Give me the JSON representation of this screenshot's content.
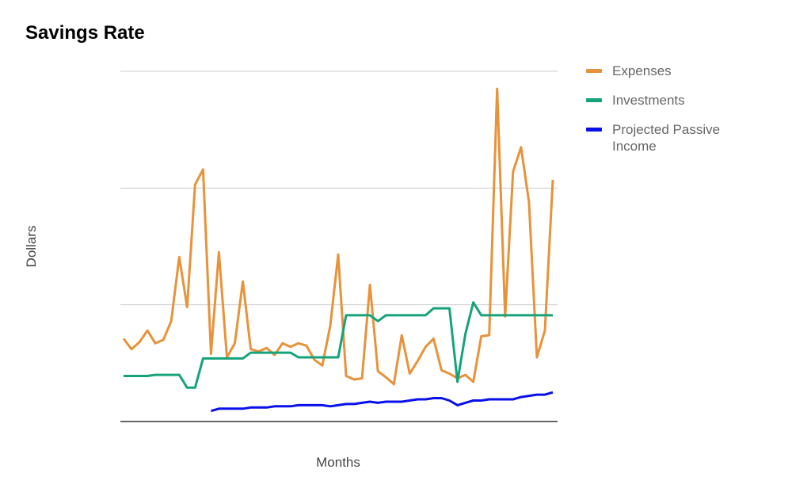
{
  "chart_data": {
    "type": "line",
    "title": "Savings Rate",
    "xlabel": "Months",
    "ylabel": "Dollars",
    "ylim": [
      0,
      3
    ],
    "grid": true,
    "legend_position": "right",
    "series": [
      {
        "name": "Expenses",
        "color": "#e8923a",
        "values": [
          0.71,
          0.62,
          0.68,
          0.78,
          0.67,
          0.7,
          0.86,
          1.41,
          0.98,
          2.03,
          2.16,
          0.58,
          1.45,
          0.55,
          0.67,
          1.2,
          0.62,
          0.6,
          0.63,
          0.57,
          0.67,
          0.64,
          0.67,
          0.65,
          0.53,
          0.48,
          0.82,
          1.43,
          0.39,
          0.36,
          0.37,
          1.17,
          0.43,
          0.38,
          0.32,
          0.74,
          0.41,
          0.52,
          0.64,
          0.71,
          0.44,
          0.41,
          0.37,
          0.4,
          0.34,
          0.73,
          0.74,
          2.85,
          0.9,
          2.14,
          2.35,
          1.88,
          0.55,
          0.78,
          2.07
        ]
      },
      {
        "name": "Investments",
        "color": "#16a27a",
        "values": [
          0.39,
          0.39,
          0.39,
          0.39,
          0.4,
          0.4,
          0.4,
          0.4,
          0.29,
          0.29,
          0.54,
          0.54,
          0.54,
          0.54,
          0.54,
          0.54,
          0.59,
          0.59,
          0.59,
          0.59,
          0.59,
          0.59,
          0.55,
          0.55,
          0.55,
          0.55,
          0.55,
          0.55,
          0.91,
          0.91,
          0.91,
          0.91,
          0.86,
          0.91,
          0.91,
          0.91,
          0.91,
          0.91,
          0.91,
          0.97,
          0.97,
          0.97,
          0.34,
          0.75,
          1.02,
          0.91,
          0.91,
          0.91,
          0.91,
          0.91,
          0.91,
          0.91,
          0.91,
          0.91,
          0.91
        ]
      },
      {
        "name": "Projected Passive Income",
        "color": "#0a10ea",
        "values": [
          null,
          null,
          null,
          null,
          null,
          null,
          null,
          null,
          null,
          null,
          null,
          0.09,
          0.11,
          0.11,
          0.11,
          0.11,
          0.12,
          0.12,
          0.12,
          0.13,
          0.13,
          0.13,
          0.14,
          0.14,
          0.14,
          0.14,
          0.13,
          0.14,
          0.15,
          0.15,
          0.16,
          0.17,
          0.16,
          0.17,
          0.17,
          0.17,
          0.18,
          0.19,
          0.19,
          0.2,
          0.2,
          0.18,
          0.14,
          0.16,
          0.18,
          0.18,
          0.19,
          0.19,
          0.19,
          0.19,
          0.21,
          0.22,
          0.23,
          0.23,
          0.25
        ]
      }
    ]
  }
}
